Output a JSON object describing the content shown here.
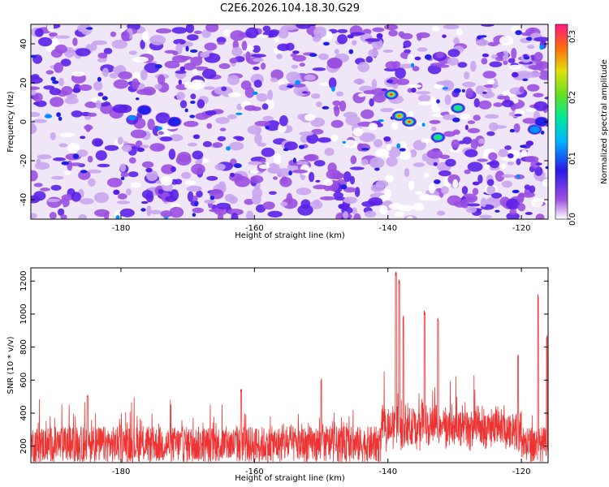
{
  "title": "C2E6.2026.104.18.30.G29",
  "chart_data": [
    {
      "type": "heatmap",
      "title": "C2E6.2026.104.18.30.G29",
      "xlabel": "Height of straight line (km)",
      "ylabel": "Frequency (Hz)",
      "xlim": [
        -193.5,
        -116
      ],
      "ylim": [
        -50,
        50
      ],
      "xticks": [
        -180,
        -160,
        -140,
        -120
      ],
      "yticks": [
        -40,
        -20,
        0,
        20,
        40
      ],
      "colorbar": {
        "label": "Normalized spectral amplitude",
        "range": [
          0,
          0.32
        ],
        "ticks": [
          0.0,
          0.1,
          0.2,
          0.3
        ],
        "tick_labels": [
          "0.0",
          "0.1",
          "0.2",
          "0.3"
        ]
      },
      "hotspots": [
        {
          "x": -139.5,
          "y": 14,
          "value": 0.3
        },
        {
          "x": -138.3,
          "y": 3,
          "value": 0.27
        },
        {
          "x": -136.8,
          "y": 0,
          "value": 0.3
        },
        {
          "x": -132.5,
          "y": -8,
          "value": 0.22
        },
        {
          "x": -129.5,
          "y": 7,
          "value": 0.2
        },
        {
          "x": -118,
          "y": -4,
          "value": 0.16
        },
        {
          "x": -117,
          "y": 0,
          "value": 0.14
        },
        {
          "x": -176.5,
          "y": 6,
          "value": 0.12
        },
        {
          "x": -172,
          "y": 0,
          "value": 0.12
        },
        {
          "x": -148,
          "y": 30,
          "value": 0.1
        }
      ]
    },
    {
      "type": "line",
      "ylabel": "SNR (10 * v/v)",
      "xlabel": "Height of straight line (km)",
      "xlim": [
        -193.5,
        -116
      ],
      "ylim": [
        100,
        1280
      ],
      "xticks": [
        -180,
        -160,
        -140,
        -120
      ],
      "yticks": [
        200,
        400,
        600,
        800,
        1000,
        1200
      ],
      "color": "#ee3333",
      "series": [
        {
          "name": "SNR",
          "baseline_mean": 210,
          "peaks": [
            {
              "x": -138.8,
              "y": 1260
            },
            {
              "x": -138.3,
              "y": 1210
            },
            {
              "x": -137.7,
              "y": 1000
            },
            {
              "x": -134.5,
              "y": 1020
            },
            {
              "x": -132.5,
              "y": 980
            },
            {
              "x": -120.5,
              "y": 760
            },
            {
              "x": -117.5,
              "y": 1120
            },
            {
              "x": -116.2,
              "y": 870
            },
            {
              "x": -185,
              "y": 520
            },
            {
              "x": -162,
              "y": 550
            },
            {
              "x": -150,
              "y": 620
            }
          ]
        }
      ]
    }
  ]
}
